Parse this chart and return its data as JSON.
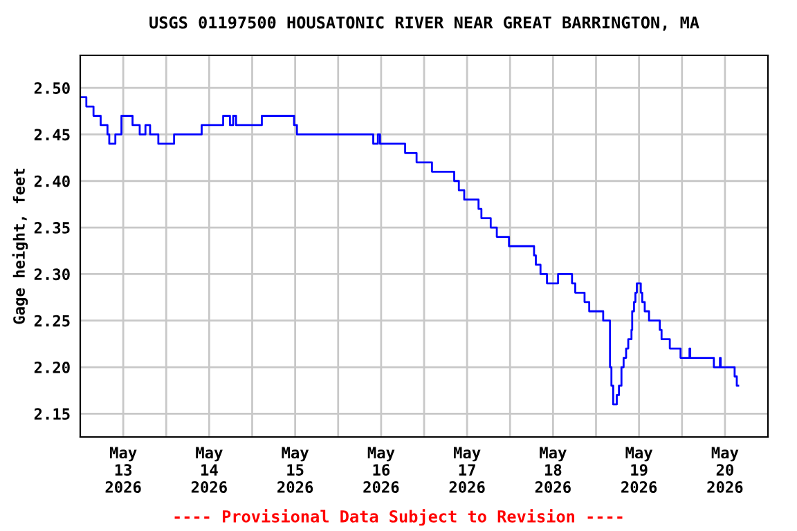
{
  "chart_data": {
    "type": "step",
    "title": "USGS 01197500 HOUSATONIC RIVER NEAR GREAT BARRINGTON, MA",
    "ylabel": "Gage height, feet",
    "annotations": [
      "---- Provisional Data Subject to Revision ----"
    ],
    "x": [
      "2026-05-13T00:00",
      "2026-05-13T01:42",
      "2026-05-13T03:42",
      "2026-05-13T05:42",
      "2026-05-13T07:36",
      "2026-05-13T08:06",
      "2026-05-13T09:48",
      "2026-05-13T11:30",
      "2026-05-13T14:36",
      "2026-05-13T16:36",
      "2026-05-13T18:12",
      "2026-05-13T19:30",
      "2026-05-13T21:48",
      "2026-05-14T02:12",
      "2026-05-14T09:54",
      "2026-05-14T15:54",
      "2026-05-14T17:48",
      "2026-05-14T18:42",
      "2026-05-14T19:30",
      "2026-05-15T02:42",
      "2026-05-15T11:42",
      "2026-05-15T12:30",
      "2026-05-16T09:48",
      "2026-05-16T11:06",
      "2026-05-16T11:42",
      "2026-05-16T18:42",
      "2026-05-16T21:54",
      "2026-05-17T02:12",
      "2026-05-17T08:24",
      "2026-05-17T09:42",
      "2026-05-17T11:12",
      "2026-05-17T15:12",
      "2026-05-17T16:00",
      "2026-05-17T18:36",
      "2026-05-17T20:18",
      "2026-05-17T23:42",
      "2026-05-18T06:42",
      "2026-05-18T07:12",
      "2026-05-18T08:30",
      "2026-05-18T10:18",
      "2026-05-18T13:24",
      "2026-05-18T17:18",
      "2026-05-18T18:12",
      "2026-05-18T20:48",
      "2026-05-18T22:06",
      "2026-05-19T02:00",
      "2026-05-19T03:54",
      "2026-05-19T04:18",
      "2026-05-19T04:48",
      "2026-05-19T05:48",
      "2026-05-19T06:24",
      "2026-05-19T07:06",
      "2026-05-19T07:42",
      "2026-05-19T08:24",
      "2026-05-19T09:00",
      "2026-05-19T09:54",
      "2026-05-19T10:06",
      "2026-05-19T10:36",
      "2026-05-19T11:00",
      "2026-05-19T11:24",
      "2026-05-19T12:30",
      "2026-05-19T12:54",
      "2026-05-19T13:36",
      "2026-05-19T14:48",
      "2026-05-19T17:48",
      "2026-05-19T18:18",
      "2026-05-19T20:36",
      "2026-05-19T23:36",
      "2026-05-20T02:06",
      "2026-05-20T02:18",
      "2026-05-20T08:54",
      "2026-05-20T10:36",
      "2026-05-20T10:48",
      "2026-05-20T14:42",
      "2026-05-20T15:18",
      "2026-05-20T15:42"
    ],
    "series": [
      {
        "color": "#0000ff",
        "values": [
          2.49,
          2.48,
          2.47,
          2.46,
          2.45,
          2.44,
          2.45,
          2.47,
          2.46,
          2.45,
          2.46,
          2.45,
          2.44,
          2.45,
          2.46,
          2.47,
          2.46,
          2.47,
          2.46,
          2.47,
          2.46,
          2.45,
          2.44,
          2.45,
          2.44,
          2.43,
          2.42,
          2.41,
          2.4,
          2.39,
          2.38,
          2.37,
          2.36,
          2.35,
          2.34,
          2.33,
          2.32,
          2.31,
          2.3,
          2.29,
          2.3,
          2.29,
          2.28,
          2.27,
          2.26,
          2.25,
          2.2,
          2.18,
          2.16,
          2.17,
          2.18,
          2.2,
          2.21,
          2.22,
          2.23,
          2.24,
          2.26,
          2.27,
          2.28,
          2.29,
          2.28,
          2.27,
          2.26,
          2.25,
          2.24,
          2.23,
          2.22,
          2.21,
          2.22,
          2.21,
          2.2,
          2.21,
          2.2,
          2.19,
          2.18,
          2.18
        ]
      }
    ],
    "xlim": [
      "2026-05-13T00:00",
      "2026-05-21T00:00"
    ],
    "xticks": [
      {
        "value": "2026-05-13T12:00",
        "label": "May\n13\n2026"
      },
      {
        "value": "2026-05-14T00:00",
        "label": null
      },
      {
        "value": "2026-05-14T12:00",
        "label": "May\n14\n2026"
      },
      {
        "value": "2026-05-15T00:00",
        "label": null
      },
      {
        "value": "2026-05-15T12:00",
        "label": "May\n15\n2026"
      },
      {
        "value": "2026-05-16T00:00",
        "label": null
      },
      {
        "value": "2026-05-16T12:00",
        "label": "May\n16\n2026"
      },
      {
        "value": "2026-05-17T00:00",
        "label": null
      },
      {
        "value": "2026-05-17T12:00",
        "label": "May\n17\n2026"
      },
      {
        "value": "2026-05-18T00:00",
        "label": null
      },
      {
        "value": "2026-05-18T12:00",
        "label": "May\n18\n2026"
      },
      {
        "value": "2026-05-19T00:00",
        "label": null
      },
      {
        "value": "2026-05-19T12:00",
        "label": "May\n19\n2026"
      },
      {
        "value": "2026-05-20T00:00",
        "label": null
      },
      {
        "value": "2026-05-20T12:00",
        "label": "May\n20\n2026"
      }
    ],
    "ylim": [
      2.125,
      2.535
    ],
    "yticks": [
      {
        "value": 2.15,
        "label": "2.15"
      },
      {
        "value": 2.2,
        "label": "2.20"
      },
      {
        "value": 2.25,
        "label": "2.25"
      },
      {
        "value": 2.3,
        "label": "2.30"
      },
      {
        "value": 2.35,
        "label": "2.35"
      },
      {
        "value": 2.4,
        "label": "2.40"
      },
      {
        "value": 2.45,
        "label": "2.45"
      },
      {
        "value": 2.5,
        "label": "2.50"
      }
    ],
    "grid": true,
    "legend": false,
    "marker": "none",
    "line_style": "solid"
  }
}
